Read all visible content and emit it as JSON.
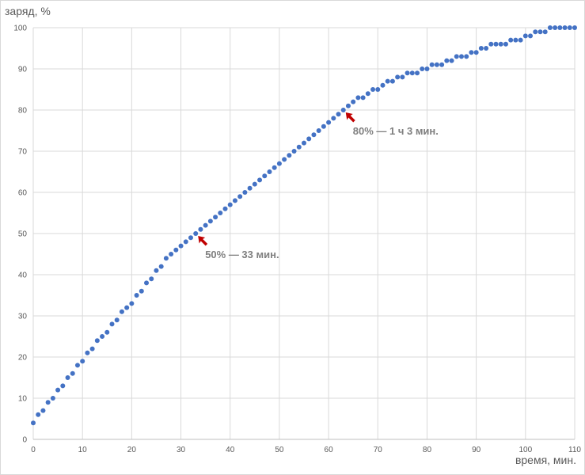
{
  "chart_data": {
    "type": "scatter",
    "title": "",
    "xlabel": "время, мин.",
    "ylabel": "заряд, %",
    "xlim": [
      0,
      110
    ],
    "ylim": [
      0,
      100
    ],
    "xticks": [
      0,
      10,
      20,
      30,
      40,
      50,
      60,
      70,
      80,
      90,
      100,
      110
    ],
    "yticks": [
      0,
      10,
      20,
      30,
      40,
      50,
      60,
      70,
      80,
      90,
      100
    ],
    "grid": true,
    "marker_color": "#4472c4",
    "annotation_color": "#c00000",
    "x": [
      0,
      1,
      2,
      3,
      4,
      5,
      6,
      7,
      8,
      9,
      10,
      11,
      12,
      13,
      14,
      15,
      16,
      17,
      18,
      19,
      20,
      21,
      22,
      23,
      24,
      25,
      26,
      27,
      28,
      29,
      30,
      31,
      32,
      33,
      34,
      35,
      36,
      37,
      38,
      39,
      40,
      41,
      42,
      43,
      44,
      45,
      46,
      47,
      48,
      49,
      50,
      51,
      52,
      53,
      54,
      55,
      56,
      57,
      58,
      59,
      60,
      61,
      62,
      63,
      64,
      65,
      66,
      67,
      68,
      69,
      70,
      71,
      72,
      73,
      74,
      75,
      76,
      77,
      78,
      79,
      80,
      81,
      82,
      83,
      84,
      85,
      86,
      87,
      88,
      89,
      90,
      91,
      92,
      93,
      94,
      95,
      96,
      97,
      98,
      99,
      100,
      101,
      102,
      103,
      104,
      105,
      106,
      107,
      108,
      109,
      110
    ],
    "y": [
      4,
      6,
      7,
      9,
      10,
      12,
      13,
      15,
      16,
      18,
      19,
      21,
      22,
      24,
      25,
      26,
      28,
      29,
      31,
      32,
      33,
      35,
      36,
      38,
      39,
      41,
      42,
      44,
      45,
      46,
      47,
      48,
      49,
      50,
      51,
      52,
      53,
      54,
      55,
      56,
      57,
      58,
      59,
      60,
      61,
      62,
      63,
      64,
      65,
      66,
      67,
      68,
      69,
      70,
      71,
      72,
      73,
      74,
      75,
      76,
      77,
      78,
      79,
      80,
      81,
      82,
      83,
      83,
      84,
      85,
      85,
      86,
      87,
      87,
      88,
      88,
      89,
      89,
      89,
      90,
      90,
      91,
      91,
      91,
      92,
      92,
      93,
      93,
      93,
      94,
      94,
      95,
      95,
      96,
      96,
      96,
      96,
      97,
      97,
      97,
      98,
      98,
      99,
      99,
      99,
      100,
      100,
      100,
      100,
      100,
      100
    ],
    "annotations": [
      {
        "x": 33,
        "y": 50,
        "text": "50% — 33 мин."
      },
      {
        "x": 63,
        "y": 80,
        "text": "80% — 1 ч 3 мин."
      }
    ]
  }
}
